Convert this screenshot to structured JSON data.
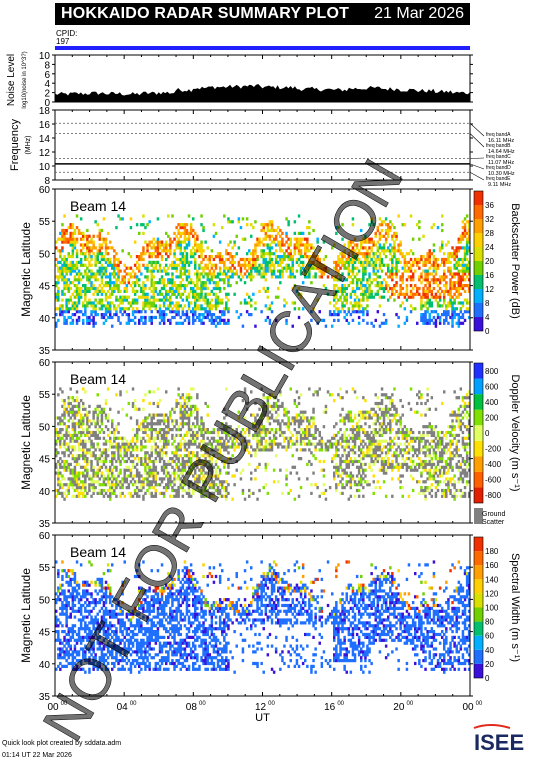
{
  "header": {
    "title": "HOKKAIDO RADAR SUMMARY PLOT",
    "date": "21 Mar 2026",
    "cpid_label": "CPID:",
    "cpid_value": "197"
  },
  "colors": {
    "cpid_bar": "#2020ff",
    "ground_scatter": "#808080"
  },
  "footer": {
    "line1": "Quick look plot created by sddata.adm",
    "line2": "01:14 UT 22 Mar 2026",
    "logo_text": "ISEE"
  },
  "watermark": "NOT FOR PUBLICATION",
  "chart_data": [
    {
      "type": "area",
      "ylabel": "Noise Level",
      "yunits": "log10(noise in 10^3?)",
      "yticks": [
        "0",
        "2",
        "4",
        "6",
        "8",
        "10"
      ],
      "ylim": [
        0,
        10
      ],
      "x_hours": [
        0,
        1,
        2,
        3,
        4,
        5,
        6,
        7,
        8,
        9,
        10,
        11,
        12,
        13,
        14,
        15,
        16,
        17,
        18,
        19,
        20,
        21,
        22,
        23,
        24
      ],
      "values": [
        1.5,
        1.6,
        1.7,
        1.6,
        1.5,
        1.7,
        1.8,
        2.4,
        2.8,
        3.0,
        3.1,
        3.2,
        3.0,
        2.9,
        2.6,
        2.5,
        2.4,
        2.7,
        2.8,
        2.6,
        2.4,
        2.2,
        2.0,
        1.8,
        1.7
      ]
    },
    {
      "type": "line",
      "ylabel": "Frequency",
      "yunits": "(MHz)",
      "yticks": [
        "8",
        "10",
        "12",
        "14",
        "16",
        "18"
      ],
      "ylim": [
        8,
        18
      ],
      "bands": [
        {
          "name": "freq bandA",
          "value": "16.11 MHz",
          "freq": 16.11
        },
        {
          "name": "freq bandB",
          "value": "14.64 MHz",
          "freq": 14.64
        },
        {
          "name": "freq bandC",
          "value": "11.07 MHz",
          "freq": 11.07
        },
        {
          "name": "freq bandD",
          "value": "10.30 MHz",
          "freq": 10.3
        },
        {
          "name": "freq bandE",
          "value": "9.11 MHz",
          "freq": 9.11
        }
      ]
    },
    {
      "type": "heatmap",
      "beam": "Beam 14",
      "ylabel": "Magnetic Latitude",
      "yticks": [
        "35",
        "40",
        "45",
        "50",
        "55",
        "60"
      ],
      "ylim": [
        35,
        60
      ],
      "colorbar_label": "Backscatter Power (dB)",
      "colorbar_ticks": [
        "0",
        "4",
        "8",
        "12",
        "16",
        "20",
        "24",
        "28",
        "32",
        "36"
      ],
      "colorscale": [
        "#3b10d8",
        "#2070ff",
        "#00b0ff",
        "#00c070",
        "#70d000",
        "#d8e000",
        "#ffd000",
        "#ffa000",
        "#ff6a00",
        "#f03000"
      ]
    },
    {
      "type": "heatmap",
      "beam": "Beam 14",
      "ylabel": "Magnetic Latitude",
      "yticks": [
        "35",
        "40",
        "45",
        "50",
        "55",
        "60"
      ],
      "ylim": [
        35,
        60
      ],
      "colorbar_label": "Doppler Velocity (m s⁻¹)",
      "colorbar_ticks": [
        "-800",
        "-600",
        "-400",
        "-200",
        "0",
        "200",
        "400",
        "600",
        "800"
      ],
      "colorscale": [
        "#e02000",
        "#ff6000",
        "#ffa000",
        "#ffe000",
        "#e0ff60",
        "#80e000",
        "#00c040",
        "#00a0ff",
        "#2030ff"
      ],
      "ground_scatter_label": [
        "Ground",
        "Scatter"
      ]
    },
    {
      "type": "heatmap",
      "beam": "Beam 14",
      "ylabel": "Magnetic Latitude",
      "yticks": [
        "35",
        "40",
        "45",
        "50",
        "55",
        "60"
      ],
      "ylim": [
        35,
        60
      ],
      "colorbar_label": "Spectral Width (m s⁻¹)",
      "colorbar_ticks": [
        "0",
        "20",
        "40",
        "60",
        "80",
        "100",
        "120",
        "140",
        "160",
        "180"
      ],
      "colorscale": [
        "#3b10d8",
        "#2070ff",
        "#00b0ff",
        "#00c070",
        "#70d000",
        "#d8e000",
        "#ffd000",
        "#ffa000",
        "#ff6a00",
        "#f03000"
      ],
      "xlabel": "UT",
      "xticks": [
        "00",
        "04",
        "08",
        "12",
        "16",
        "20",
        "00"
      ],
      "xtick_sup": "00"
    }
  ]
}
